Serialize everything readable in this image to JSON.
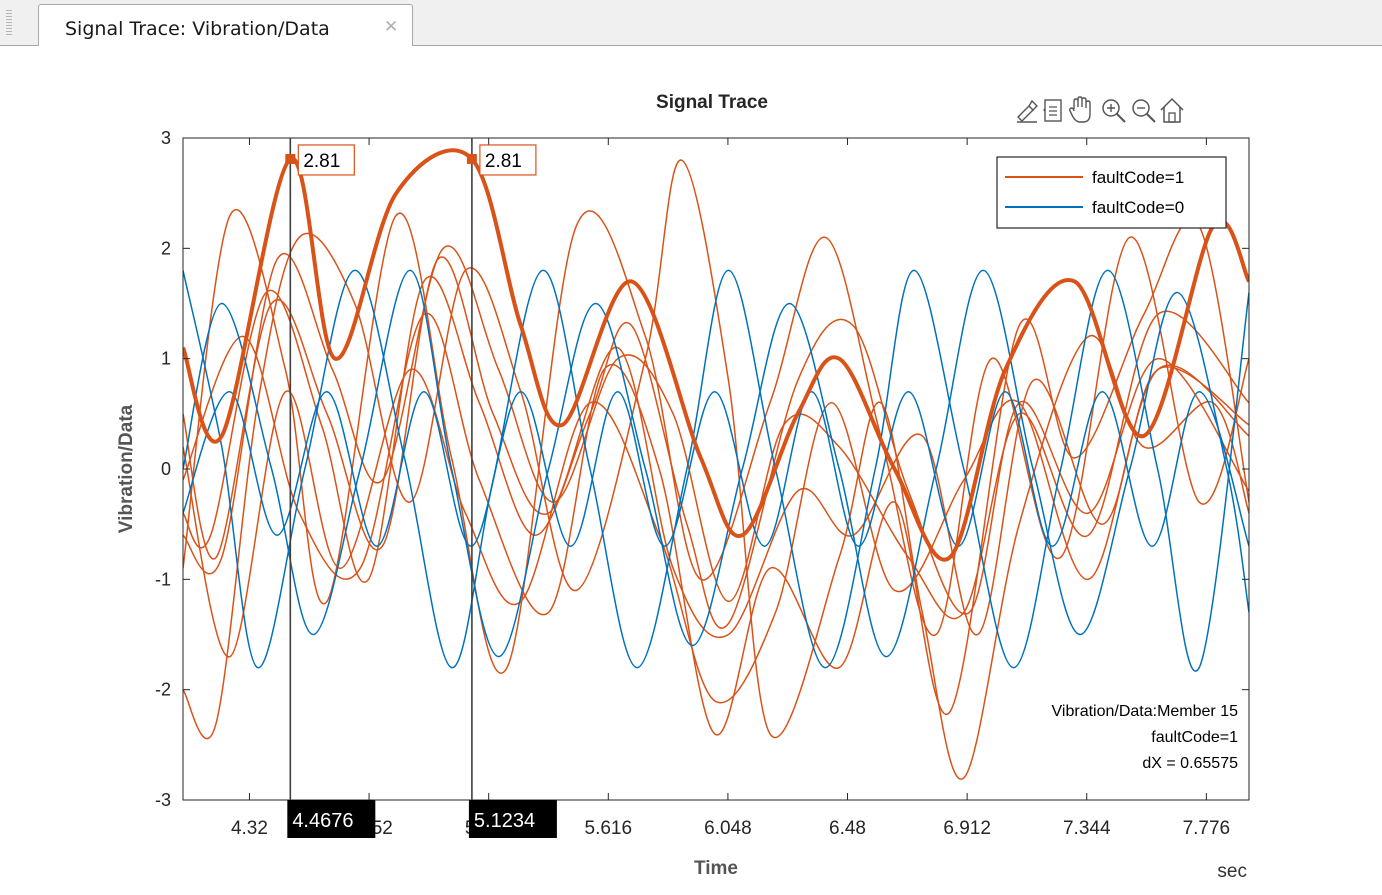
{
  "tab": {
    "title": "Signal Trace: Vibration/Data",
    "close_icon": "close-icon"
  },
  "toolbar": {
    "icons": [
      "brush-icon",
      "datatip-icon",
      "pan-icon",
      "zoom-in-icon",
      "zoom-out-icon",
      "home-icon"
    ]
  },
  "chart_data": {
    "type": "line",
    "title": "Signal Trace",
    "xlabel": "Time",
    "ylabel": "Vibration/Data",
    "x_unit": "sec",
    "xlim": [
      4.08,
      7.93
    ],
    "ylim": [
      -3,
      3
    ],
    "xticks": [
      4.32,
      4.752,
      5.184,
      5.616,
      6.048,
      6.48,
      6.912,
      7.344,
      7.776
    ],
    "xtick_labels": [
      "4.32",
      "4.752",
      "5.184",
      "5.616",
      "6.048",
      "6.48",
      "6.912",
      "7.344",
      "7.776"
    ],
    "yticks": [
      -3,
      -2,
      -1,
      0,
      1,
      2,
      3
    ],
    "grid": false,
    "legend": {
      "position": "top-right",
      "entries": [
        {
          "label": "faultCode=1",
          "color": "#d95319"
        },
        {
          "label": "faultCode=0",
          "color": "#0072bd"
        }
      ]
    },
    "series": [
      {
        "group": "faultCode=1",
        "color": "#d95319",
        "highlighted": true,
        "points": [
          [
            4.08,
            1.1
          ],
          [
            4.22,
            0.3
          ],
          [
            4.4676,
            2.81
          ],
          [
            4.63,
            1.0
          ],
          [
            4.85,
            2.5
          ],
          [
            5.1234,
            2.81
          ],
          [
            5.3,
            1.3
          ],
          [
            5.45,
            0.4
          ],
          [
            5.7,
            1.7
          ],
          [
            5.95,
            0.1
          ],
          [
            6.1,
            -0.6
          ],
          [
            6.3,
            0.5
          ],
          [
            6.45,
            1.0
          ],
          [
            6.65,
            0.0
          ],
          [
            6.85,
            -0.8
          ],
          [
            7.05,
            0.9
          ],
          [
            7.3,
            1.7
          ],
          [
            7.55,
            0.3
          ],
          [
            7.8,
            2.2
          ],
          [
            7.93,
            1.7
          ]
        ]
      },
      {
        "group": "faultCode=1",
        "color": "#d95319",
        "points": [
          [
            4.08,
            -0.9
          ],
          [
            4.25,
            2.3
          ],
          [
            4.45,
            0.9
          ],
          [
            4.6,
            -1.2
          ],
          [
            4.85,
            2.3
          ],
          [
            5.05,
            0.1
          ],
          [
            5.25,
            -1.8
          ],
          [
            5.5,
            2.2
          ],
          [
            5.75,
            1.2
          ],
          [
            5.95,
            -1.0
          ],
          [
            6.2,
            0.6
          ],
          [
            6.4,
            2.1
          ],
          [
            6.6,
            0.3
          ],
          [
            6.8,
            -1.5
          ],
          [
            7.0,
            1.0
          ],
          [
            7.25,
            -0.8
          ],
          [
            7.5,
            2.1
          ],
          [
            7.75,
            -0.3
          ],
          [
            7.93,
            1.0
          ]
        ]
      },
      {
        "group": "faultCode=1",
        "color": "#d95319",
        "points": [
          [
            4.08,
            -2.0
          ],
          [
            4.2,
            -2.3
          ],
          [
            4.35,
            0.6
          ],
          [
            4.5,
            2.1
          ],
          [
            4.7,
            1.5
          ],
          [
            4.9,
            -0.3
          ],
          [
            5.1,
            1.8
          ],
          [
            5.3,
            0.7
          ],
          [
            5.5,
            -1.1
          ],
          [
            5.75,
            1.0
          ],
          [
            5.88,
            2.8
          ],
          [
            6.05,
            0.8
          ],
          [
            6.2,
            -2.4
          ],
          [
            6.45,
            -0.8
          ],
          [
            6.6,
            0.6
          ],
          [
            6.75,
            -1.3
          ],
          [
            6.9,
            -2.8
          ],
          [
            7.1,
            -0.5
          ],
          [
            7.35,
            1.2
          ],
          [
            7.55,
            0.2
          ],
          [
            7.8,
            0.6
          ],
          [
            7.93,
            -0.4
          ]
        ]
      },
      {
        "group": "faultCode=1",
        "color": "#d95319",
        "points": [
          [
            4.08,
            0.5
          ],
          [
            4.2,
            -0.8
          ],
          [
            4.4,
            1.5
          ],
          [
            4.6,
            0.5
          ],
          [
            4.8,
            -0.7
          ],
          [
            5.0,
            1.9
          ],
          [
            5.2,
            0.5
          ],
          [
            5.4,
            -0.4
          ],
          [
            5.65,
            1.1
          ],
          [
            5.85,
            -0.9
          ],
          [
            6.05,
            -1.5
          ],
          [
            6.3,
            -0.2
          ],
          [
            6.5,
            -0.6
          ],
          [
            6.75,
            0.3
          ],
          [
            6.95,
            -1.5
          ],
          [
            7.15,
            0.8
          ],
          [
            7.4,
            -0.5
          ],
          [
            7.6,
            0.9
          ],
          [
            7.93,
            0.4
          ]
        ]
      },
      {
        "group": "faultCode=1",
        "color": "#d95319",
        "points": [
          [
            4.08,
            -0.4
          ],
          [
            4.18,
            -0.6
          ],
          [
            4.38,
            1.6
          ],
          [
            4.58,
            0.4
          ],
          [
            4.75,
            -1.0
          ],
          [
            4.95,
            1.7
          ],
          [
            5.15,
            0.6
          ],
          [
            5.35,
            -0.6
          ],
          [
            5.55,
            0.5
          ],
          [
            5.7,
            1.3
          ],
          [
            5.9,
            -0.5
          ],
          [
            6.05,
            -1.4
          ],
          [
            6.3,
            0.8
          ],
          [
            6.5,
            1.3
          ],
          [
            6.7,
            -0.2
          ],
          [
            6.92,
            -1.3
          ],
          [
            7.1,
            0.6
          ],
          [
            7.35,
            -0.4
          ],
          [
            7.6,
            1.0
          ],
          [
            7.93,
            -0.2
          ]
        ]
      },
      {
        "group": "faultCode=1",
        "color": "#d95319",
        "points": [
          [
            4.08,
            -0.1
          ],
          [
            4.3,
            1.2
          ],
          [
            4.5,
            -0.4
          ],
          [
            4.72,
            -0.9
          ],
          [
            4.95,
            1.4
          ],
          [
            5.15,
            -0.1
          ],
          [
            5.4,
            -1.3
          ],
          [
            5.6,
            0.9
          ],
          [
            5.8,
            0.0
          ],
          [
            6.0,
            -2.4
          ],
          [
            6.2,
            -0.9
          ],
          [
            6.45,
            -1.8
          ],
          [
            6.65,
            -0.3
          ],
          [
            6.85,
            -2.2
          ],
          [
            7.1,
            1.3
          ],
          [
            7.3,
            0.1
          ],
          [
            7.55,
            1.4
          ],
          [
            7.75,
            2.2
          ],
          [
            7.93,
            -0.3
          ]
        ]
      },
      {
        "group": "faultCode=1",
        "color": "#d95319",
        "points": [
          [
            4.08,
            -0.6
          ],
          [
            4.22,
            -0.8
          ],
          [
            4.42,
            1.9
          ],
          [
            4.62,
            0.9
          ],
          [
            4.8,
            -0.1
          ],
          [
            5.02,
            2.0
          ],
          [
            5.22,
            0.9
          ],
          [
            5.42,
            -0.3
          ],
          [
            5.65,
            1.0
          ],
          [
            5.85,
            0.5
          ],
          [
            6.05,
            -1.2
          ],
          [
            6.25,
            0.4
          ],
          [
            6.45,
            0.2
          ],
          [
            6.7,
            -0.8
          ],
          [
            6.9,
            -1.3
          ],
          [
            7.1,
            0.5
          ],
          [
            7.35,
            -0.6
          ],
          [
            7.6,
            1.4
          ],
          [
            7.93,
            0.6
          ]
        ]
      },
      {
        "group": "faultCode=1",
        "color": "#d95319",
        "points": [
          [
            4.08,
            0.2
          ],
          [
            4.25,
            -1.7
          ],
          [
            4.45,
            0.7
          ],
          [
            4.65,
            -0.9
          ],
          [
            4.9,
            0.9
          ],
          [
            5.1,
            -0.4
          ],
          [
            5.3,
            -1.2
          ],
          [
            5.55,
            0.6
          ],
          [
            5.8,
            -0.6
          ],
          [
            6.0,
            -2.1
          ],
          [
            6.22,
            -1.3
          ],
          [
            6.42,
            0.6
          ],
          [
            6.65,
            -1.1
          ],
          [
            6.9,
            -0.1
          ],
          [
            7.1,
            0.6
          ],
          [
            7.35,
            -1.0
          ],
          [
            7.6,
            0.9
          ],
          [
            7.93,
            0.3
          ]
        ]
      },
      {
        "group": "faultCode=0",
        "color": "#0072bd",
        "points": [
          [
            4.08,
            1.8
          ],
          [
            4.22,
            0.2
          ],
          [
            4.35,
            -1.8
          ],
          [
            4.52,
            0.0
          ],
          [
            4.7,
            1.8
          ],
          [
            4.88,
            0.1
          ],
          [
            5.05,
            -1.8
          ],
          [
            5.2,
            -0.1
          ],
          [
            5.38,
            1.8
          ],
          [
            5.55,
            0.0
          ],
          [
            5.72,
            -1.8
          ],
          [
            5.9,
            0.0
          ],
          [
            6.05,
            1.8
          ],
          [
            6.22,
            0.0
          ],
          [
            6.4,
            -1.8
          ],
          [
            6.58,
            0.0
          ],
          [
            6.72,
            1.8
          ],
          [
            6.9,
            0.0
          ],
          [
            7.08,
            -1.8
          ],
          [
            7.25,
            0.0
          ],
          [
            7.42,
            1.8
          ],
          [
            7.6,
            0.0
          ],
          [
            7.75,
            -1.8
          ],
          [
            7.93,
            1.6
          ]
        ]
      },
      {
        "group": "faultCode=0",
        "color": "#0072bd",
        "points": [
          [
            4.08,
            0.0
          ],
          [
            4.22,
            1.5
          ],
          [
            4.4,
            0.0
          ],
          [
            4.55,
            -1.5
          ],
          [
            4.72,
            0.0
          ],
          [
            4.9,
            1.8
          ],
          [
            5.05,
            0.0
          ],
          [
            5.22,
            -1.7
          ],
          [
            5.4,
            0.0
          ],
          [
            5.57,
            1.5
          ],
          [
            5.75,
            0.0
          ],
          [
            5.92,
            -1.6
          ],
          [
            6.1,
            0.0
          ],
          [
            6.27,
            1.5
          ],
          [
            6.45,
            0.0
          ],
          [
            6.62,
            -1.7
          ],
          [
            6.8,
            0.0
          ],
          [
            6.97,
            1.8
          ],
          [
            7.15,
            0.0
          ],
          [
            7.32,
            -1.5
          ],
          [
            7.5,
            0.0
          ],
          [
            7.67,
            1.6
          ],
          [
            7.85,
            0.0
          ],
          [
            7.93,
            -1.3
          ]
        ]
      },
      {
        "group": "faultCode=0",
        "color": "#0072bd",
        "points": [
          [
            4.08,
            -0.4
          ],
          [
            4.25,
            0.7
          ],
          [
            4.42,
            -0.6
          ],
          [
            4.6,
            0.7
          ],
          [
            4.78,
            -0.7
          ],
          [
            4.95,
            0.7
          ],
          [
            5.12,
            -0.7
          ],
          [
            5.3,
            0.7
          ],
          [
            5.48,
            -0.7
          ],
          [
            5.65,
            0.7
          ],
          [
            5.82,
            -0.7
          ],
          [
            6.0,
            0.7
          ],
          [
            6.18,
            -0.7
          ],
          [
            6.35,
            0.7
          ],
          [
            6.52,
            -0.7
          ],
          [
            6.7,
            0.7
          ],
          [
            6.88,
            -0.7
          ],
          [
            7.05,
            0.7
          ],
          [
            7.22,
            -0.7
          ],
          [
            7.4,
            0.7
          ],
          [
            7.58,
            -0.7
          ],
          [
            7.75,
            0.7
          ],
          [
            7.93,
            -0.7
          ]
        ]
      }
    ],
    "cursors": [
      {
        "x": 4.4676,
        "x_label": "4.4676",
        "y_label": "2.81"
      },
      {
        "x": 5.1234,
        "x_label": "5.1234",
        "y_label": "2.81"
      }
    ],
    "annotation": {
      "member": "Vibration/Data:Member 15",
      "group": "faultCode=1",
      "dx": "dX = 0.65575"
    }
  }
}
